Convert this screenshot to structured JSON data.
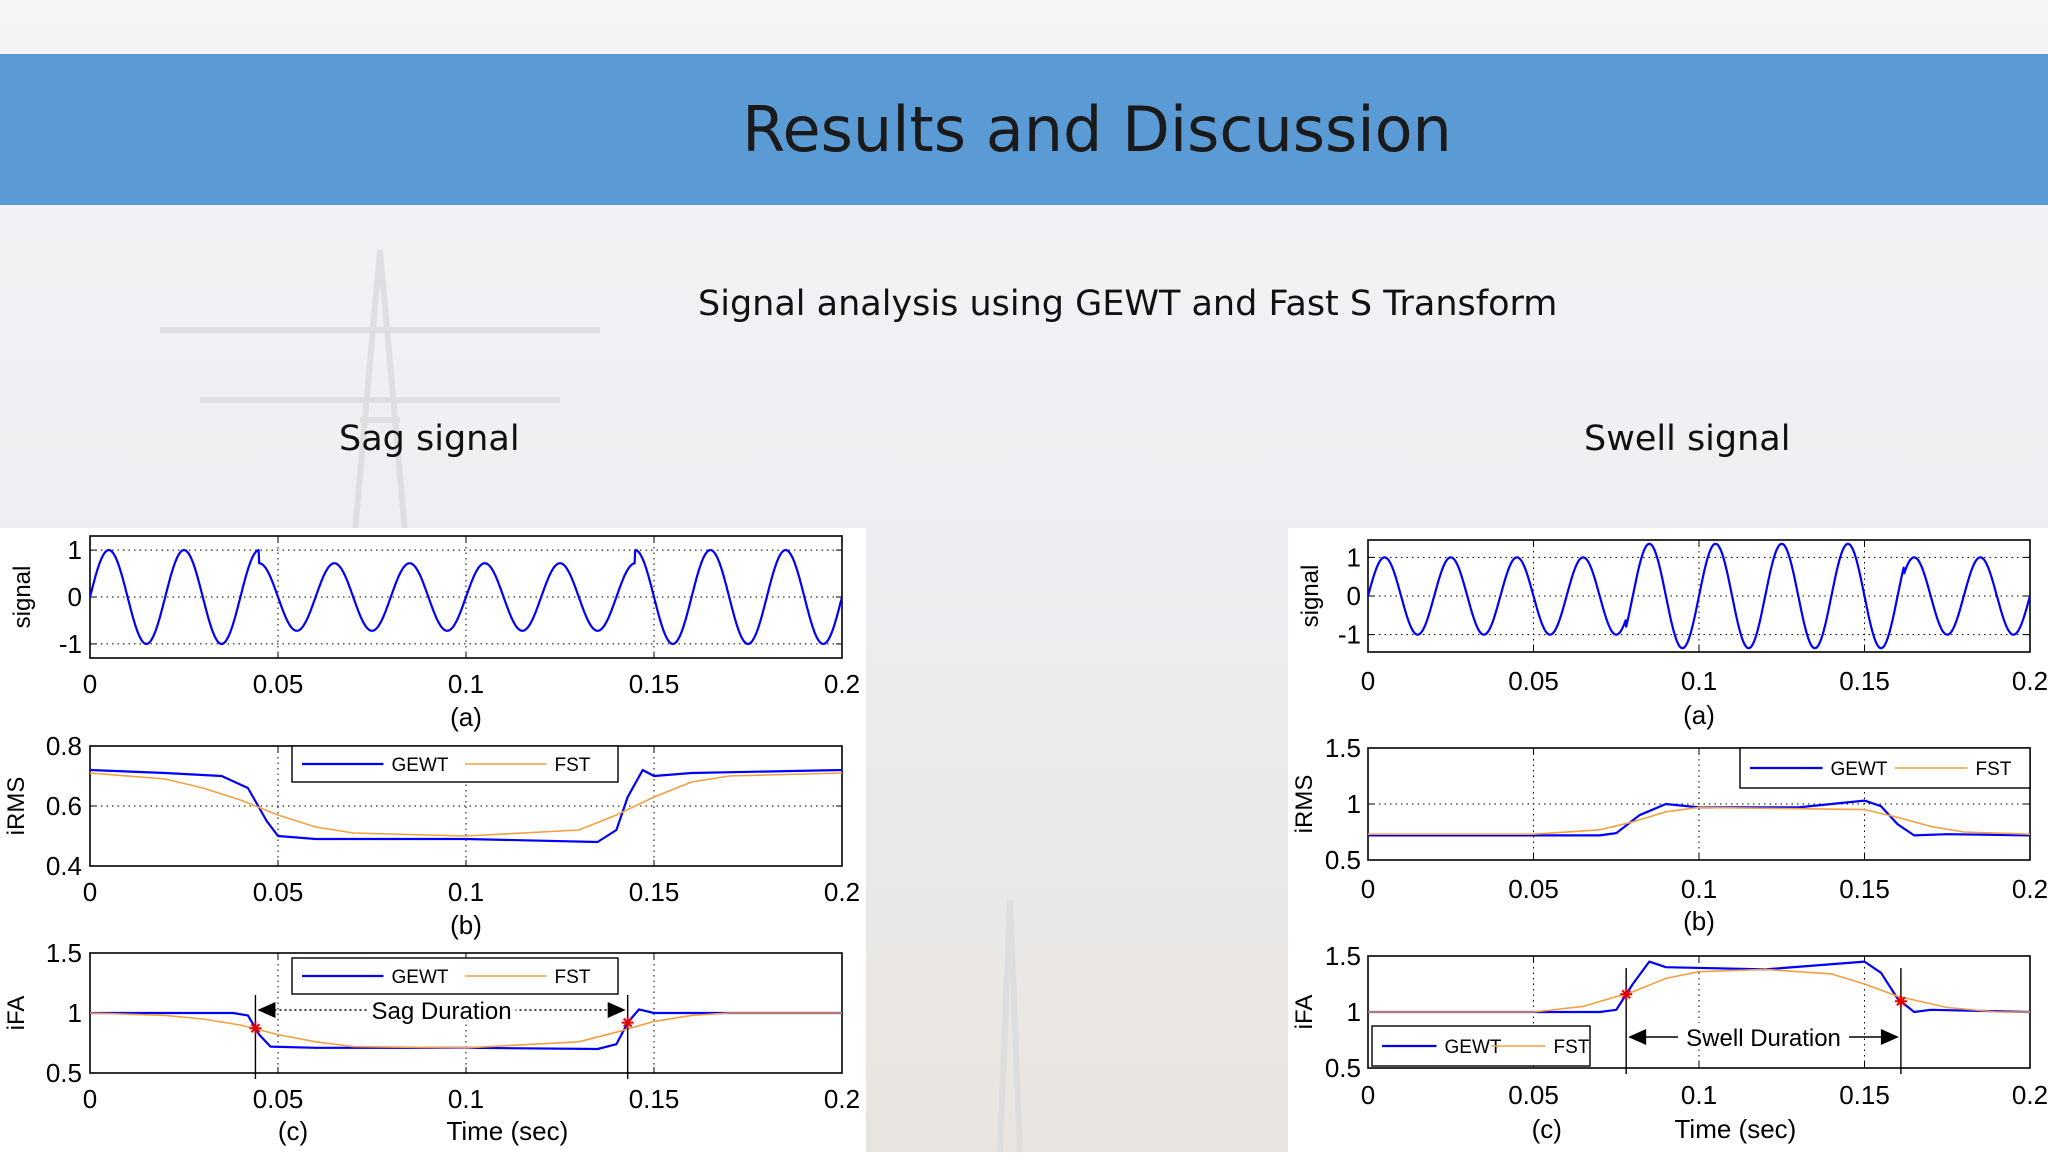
{
  "slide": {
    "title": "Results and Discussion",
    "subtitle": "Signal analysis using GEWT and Fast S Transform",
    "left_caption": "Sag signal",
    "right_caption": "Swell signal"
  },
  "colors": {
    "banner": "#5b9bd5",
    "gewt": "#0000ff",
    "fst": "#f4a040",
    "marker": "#e00000"
  },
  "chart_data": [
    {
      "type": "line",
      "figure": "Sag signal",
      "subplot_label": "(a)",
      "ylabel": "signal",
      "x_ticks": [
        "0",
        "0.05",
        "0.1",
        "0.15",
        "0.2"
      ],
      "y_ticks": [
        "-1",
        "0",
        "1"
      ],
      "xlim": [
        0,
        0.2
      ],
      "ylim": [
        -1.3,
        1.3
      ],
      "grid": "dotted",
      "series": [
        {
          "type": "sine",
          "freq_hz": 50,
          "amp_segments": [
            [
              0,
              0.045,
              1.0
            ],
            [
              0.045,
              0.145,
              0.72
            ],
            [
              0.145,
              0.2,
              1.0
            ]
          ]
        }
      ]
    },
    {
      "type": "line",
      "figure": "Sag signal",
      "subplot_label": "(b)",
      "ylabel": "iRMS",
      "x_ticks": [
        "0",
        "0.05",
        "0.1",
        "0.15",
        "0.2"
      ],
      "y_ticks": [
        "0.4",
        "0.6",
        "0.8"
      ],
      "xlim": [
        0,
        0.2
      ],
      "ylim": [
        0.4,
        0.8
      ],
      "grid": "dotted",
      "legend_position": "top",
      "series": [
        {
          "name": "GEWT",
          "x": [
            0,
            0.02,
            0.035,
            0.042,
            0.047,
            0.05,
            0.06,
            0.1,
            0.135,
            0.14,
            0.143,
            0.147,
            0.15,
            0.16,
            0.2
          ],
          "y": [
            0.72,
            0.71,
            0.7,
            0.66,
            0.55,
            0.5,
            0.49,
            0.49,
            0.48,
            0.52,
            0.63,
            0.72,
            0.7,
            0.71,
            0.72
          ]
        },
        {
          "name": "FST",
          "x": [
            0,
            0.02,
            0.03,
            0.04,
            0.05,
            0.06,
            0.07,
            0.1,
            0.13,
            0.14,
            0.15,
            0.16,
            0.17,
            0.2
          ],
          "y": [
            0.71,
            0.69,
            0.66,
            0.62,
            0.57,
            0.53,
            0.51,
            0.5,
            0.52,
            0.57,
            0.63,
            0.68,
            0.7,
            0.71
          ]
        }
      ]
    },
    {
      "type": "line",
      "figure": "Sag signal",
      "subplot_label": "(c)",
      "ylabel": "iFA",
      "xlabel": "Time (sec)",
      "x_ticks": [
        "0",
        "0.05",
        "0.1",
        "0.15",
        "0.2"
      ],
      "y_ticks": [
        "0.5",
        "1",
        "1.5"
      ],
      "xlim": [
        0,
        0.2
      ],
      "ylim": [
        0.5,
        1.5
      ],
      "legend_position": "top",
      "annotation": "Sag Duration",
      "markers_x": [
        0.044,
        0.143
      ],
      "series": [
        {
          "name": "GEWT",
          "x": [
            0,
            0.038,
            0.042,
            0.045,
            0.048,
            0.06,
            0.1,
            0.135,
            0.14,
            0.143,
            0.146,
            0.15,
            0.16,
            0.2
          ],
          "y": [
            1.0,
            1.0,
            0.98,
            0.82,
            0.72,
            0.71,
            0.71,
            0.7,
            0.74,
            0.92,
            1.03,
            1.0,
            1.0,
            1.0
          ]
        },
        {
          "name": "FST",
          "x": [
            0,
            0.02,
            0.03,
            0.04,
            0.05,
            0.06,
            0.07,
            0.1,
            0.13,
            0.14,
            0.15,
            0.16,
            0.17,
            0.2
          ],
          "y": [
            1.0,
            0.98,
            0.95,
            0.9,
            0.82,
            0.76,
            0.72,
            0.71,
            0.76,
            0.84,
            0.93,
            0.98,
            1.0,
            1.0
          ]
        }
      ]
    },
    {
      "type": "line",
      "figure": "Swell signal",
      "subplot_label": "(a)",
      "ylabel": "signal",
      "x_ticks": [
        "0",
        "0.05",
        "0.1",
        "0.15",
        "0.2"
      ],
      "y_ticks": [
        "-1",
        "0",
        "1"
      ],
      "xlim": [
        0,
        0.2
      ],
      "ylim": [
        -1.45,
        1.45
      ],
      "grid": "dotted",
      "series": [
        {
          "type": "sine",
          "freq_hz": 50,
          "amp_segments": [
            [
              0,
              0.078,
              1.0
            ],
            [
              0.078,
              0.162,
              1.35
            ],
            [
              0.162,
              0.2,
              1.0
            ]
          ]
        }
      ]
    },
    {
      "type": "line",
      "figure": "Swell signal",
      "subplot_label": "(b)",
      "ylabel": "iRMS",
      "x_ticks": [
        "0",
        "0.05",
        "0.1",
        "0.15",
        "0.2"
      ],
      "y_ticks": [
        "0.5",
        "1",
        "1.5"
      ],
      "xlim": [
        0,
        0.2
      ],
      "ylim": [
        0.5,
        1.5
      ],
      "grid": "dotted",
      "legend_position": "top-right",
      "series": [
        {
          "name": "GEWT",
          "x": [
            0,
            0.07,
            0.075,
            0.082,
            0.09,
            0.1,
            0.13,
            0.15,
            0.155,
            0.16,
            0.165,
            0.175,
            0.2
          ],
          "y": [
            0.72,
            0.72,
            0.74,
            0.9,
            1.0,
            0.97,
            0.97,
            1.03,
            0.98,
            0.82,
            0.72,
            0.73,
            0.72
          ]
        },
        {
          "name": "FST",
          "x": [
            0,
            0.05,
            0.07,
            0.08,
            0.09,
            0.1,
            0.15,
            0.16,
            0.17,
            0.18,
            0.2
          ],
          "y": [
            0.73,
            0.73,
            0.77,
            0.84,
            0.93,
            0.97,
            0.95,
            0.88,
            0.8,
            0.75,
            0.73
          ]
        }
      ]
    },
    {
      "type": "line",
      "figure": "Swell signal",
      "subplot_label": "(c)",
      "ylabel": "iFA",
      "xlabel": "Time (sec)",
      "x_ticks": [
        "0",
        "0.05",
        "0.1",
        "0.15",
        "0.2"
      ],
      "y_ticks": [
        "0.5",
        "1",
        "1.5"
      ],
      "xlim": [
        0,
        0.2
      ],
      "ylim": [
        0.5,
        1.5
      ],
      "legend_position": "bottom-left",
      "annotation": "Swell Duration",
      "markers_x": [
        0.078,
        0.161
      ],
      "series": [
        {
          "name": "GEWT",
          "x": [
            0,
            0.07,
            0.075,
            0.08,
            0.085,
            0.09,
            0.12,
            0.15,
            0.155,
            0.16,
            0.165,
            0.17,
            0.2
          ],
          "y": [
            1.0,
            1.0,
            1.02,
            1.25,
            1.45,
            1.4,
            1.38,
            1.45,
            1.35,
            1.12,
            1.0,
            1.02,
            1.0
          ]
        },
        {
          "name": "FST",
          "x": [
            0,
            0.05,
            0.065,
            0.08,
            0.09,
            0.1,
            0.12,
            0.14,
            0.15,
            0.16,
            0.175,
            0.19,
            0.2
          ],
          "y": [
            1.0,
            1.0,
            1.05,
            1.18,
            1.3,
            1.36,
            1.38,
            1.34,
            1.25,
            1.14,
            1.04,
            1.0,
            1.0
          ]
        }
      ]
    }
  ]
}
